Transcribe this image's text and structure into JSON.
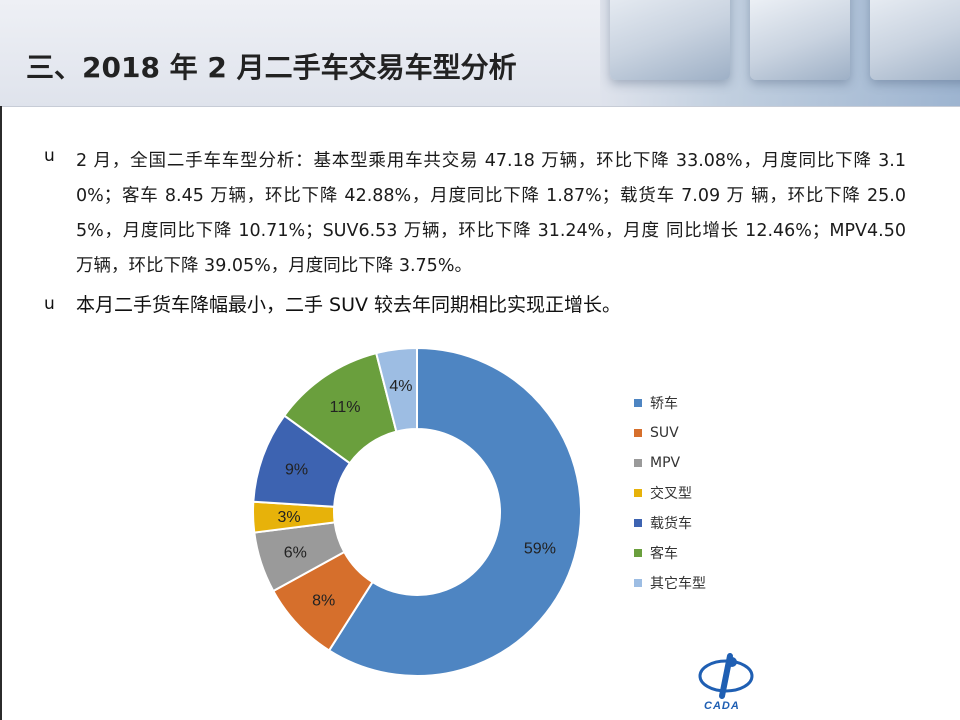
{
  "slide": {
    "title": "三、2018 年 2 月二手车交易车型分析",
    "bullet_marker": "u",
    "paragraph1": "2 月，全国二手车车型分析：基本型乘用车共交易 47.18 万辆，环比下降 33.08%，月度同比下降 3.10%；客车 8.45 万辆，环比下降 42.88%，月度同比下降 1.87%；载货车 7.09 万 辆，环比下降 25.05%，月度同比下降 10.71%；SUV6.53 万辆，环比下降 31.24%，月度 同比增长 12.46%；MPV4.50 万辆，环比下降 39.05%，月度同比下降 3.75%。",
    "paragraph2": "本月二手货车降幅最小，二手 SUV 较去年同期相比实现正增长。",
    "logo_text": "CADA"
  },
  "chart_data": {
    "type": "pie",
    "donut": true,
    "categories": [
      "轿车",
      "SUV",
      "MPV",
      "交叉型",
      "载货车",
      "客车",
      "其它车型"
    ],
    "values": [
      59,
      8,
      6,
      3,
      9,
      11,
      4
    ],
    "labels": [
      "59%",
      "8%",
      "6%",
      "3%",
      "9%",
      "11%",
      "4%"
    ],
    "colors": [
      "#4e85c2",
      "#d66f2c",
      "#9a9a9a",
      "#e7b20a",
      "#3d63b1",
      "#6a9f3d",
      "#9dbde3"
    ],
    "start_angle_deg": 0,
    "direction": "clockwise",
    "legend_position": "right"
  }
}
